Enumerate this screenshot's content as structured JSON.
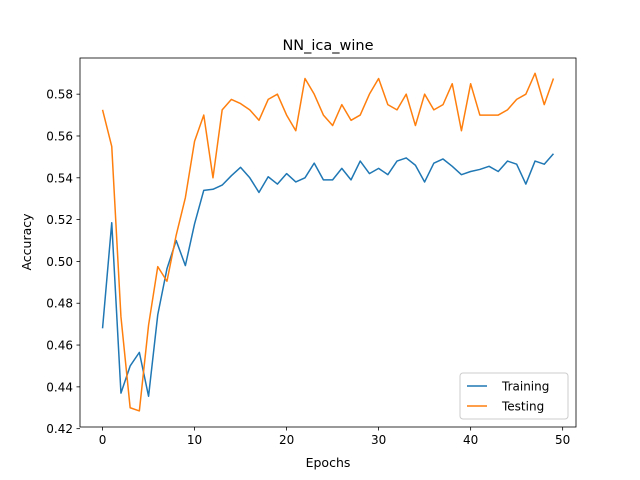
{
  "chart_data": {
    "type": "line",
    "title": "NN_ica_wine",
    "xlabel": "Epochs",
    "ylabel": "Accuracy",
    "xlim": [
      -2.45,
      51.45
    ],
    "ylim": [
      0.4208,
      0.5973
    ],
    "xticks": [
      0,
      10,
      20,
      30,
      40,
      50
    ],
    "xtick_labels": [
      "0",
      "10",
      "20",
      "30",
      "40",
      "50"
    ],
    "yticks": [
      0.42,
      0.44,
      0.46,
      0.48,
      0.5,
      0.52,
      0.54,
      0.56,
      0.58
    ],
    "ytick_labels": [
      "0.42",
      "0.44",
      "0.46",
      "0.48",
      "0.50",
      "0.52",
      "0.54",
      "0.56",
      "0.58"
    ],
    "grid": false,
    "legend_position": "lower-right",
    "x": [
      0,
      1,
      2,
      3,
      4,
      5,
      6,
      7,
      8,
      9,
      10,
      11,
      12,
      13,
      14,
      15,
      16,
      17,
      18,
      19,
      20,
      21,
      22,
      23,
      24,
      25,
      26,
      27,
      28,
      29,
      30,
      31,
      32,
      33,
      34,
      35,
      36,
      37,
      38,
      39,
      40,
      41,
      42,
      43,
      44,
      45,
      46,
      47,
      48,
      49
    ],
    "series": [
      {
        "name": "Training",
        "color": "#1f77b4",
        "values": [
          0.468,
          0.5185,
          0.437,
          0.45,
          0.4565,
          0.4355,
          0.4745,
          0.4965,
          0.51,
          0.498,
          0.518,
          0.534,
          0.5345,
          0.5365,
          0.541,
          0.545,
          0.54,
          0.533,
          0.5405,
          0.537,
          0.542,
          0.538,
          0.54,
          0.547,
          0.539,
          0.539,
          0.5445,
          0.539,
          0.548,
          0.542,
          0.5445,
          0.5415,
          0.548,
          0.5495,
          0.546,
          0.538,
          0.547,
          0.549,
          0.5455,
          0.5415,
          0.543,
          0.544,
          0.5455,
          0.543,
          0.548,
          0.5465,
          0.537,
          0.548,
          0.5465,
          0.5515
        ]
      },
      {
        "name": "Testing",
        "color": "#ff7f0e",
        "values": [
          0.5725,
          0.555,
          0.4735,
          0.43,
          0.4285,
          0.4695,
          0.4975,
          0.4905,
          0.5125,
          0.5305,
          0.5575,
          0.57,
          0.54,
          0.5725,
          0.5775,
          0.5755,
          0.5725,
          0.5675,
          0.5775,
          0.58,
          0.57,
          0.5625,
          0.5875,
          0.58,
          0.57,
          0.565,
          0.575,
          0.5675,
          0.57,
          0.58,
          0.5875,
          0.575,
          0.5725,
          0.58,
          0.565,
          0.58,
          0.5725,
          0.575,
          0.585,
          0.5625,
          0.585,
          0.57,
          0.57,
          0.57,
          0.5725,
          0.5775,
          0.58,
          0.59,
          0.575,
          0.5875
        ]
      }
    ]
  }
}
